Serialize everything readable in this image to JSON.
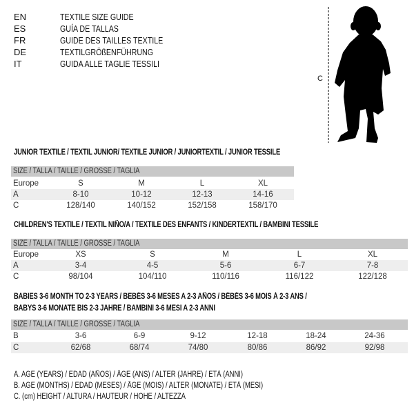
{
  "languages": [
    {
      "code": "EN",
      "text": "TEXTILE SIZE GUIDE"
    },
    {
      "code": "ES",
      "text": "GUÍA DE TALLAS"
    },
    {
      "code": "FR",
      "text": "GUIDE DES TAILLES TEXTILE"
    },
    {
      "code": "DE",
      "text": "TEXTILGRÖßENFÜHRUNG"
    },
    {
      "code": "IT",
      "text": "GUIDA ALLE TAGLIE TESSILI"
    }
  ],
  "figure": {
    "label": "C",
    "icon": "child-silhouette"
  },
  "size_header": "SIZE / TALLA / TAILLE / GRÖSSE / TAGLIA",
  "junior": {
    "title": "JUNIOR TEXTILE / TEXTIL JUNIOR/ TEXTILE JUNIOR / JUNIORTEXTIL / JUNIOR TESSILE",
    "rows": [
      {
        "label": "Europe",
        "values": [
          "S",
          "M",
          "L",
          "XL"
        ]
      },
      {
        "label": "A",
        "values": [
          "8-10",
          "10-12",
          "12-13",
          "14-16"
        ]
      },
      {
        "label": "C",
        "values": [
          "128/140",
          "140/152",
          "152/158",
          "158/170"
        ]
      }
    ]
  },
  "children": {
    "title": "CHILDREN'S TEXTILE / TEXTIL NIÑO/A / TEXTILE DES ENFANTS / KINDERTEXTIL / BAMBINI TESSILE",
    "rows": [
      {
        "label": "Europe",
        "values": [
          "XS",
          "S",
          "M",
          "L",
          "XL"
        ]
      },
      {
        "label": "A",
        "values": [
          "3-4",
          "4-5",
          "5-6",
          "6-7",
          "7-8"
        ]
      },
      {
        "label": "C",
        "values": [
          "98/104",
          "104/110",
          "110/116",
          "116/122",
          "122/128"
        ]
      }
    ]
  },
  "babies": {
    "title_line1": "BABIES 3-6 MONTH TO 2-3 YEARS / BEBÉS 3-6 MESES A 2-3 AÑOS / BÉBÉS 3-6 MOIS À 2-3 ANS /",
    "title_line2": "BABYS 3-6 MONATE BIS 2-3 JAHRE / BAMBINI 3-6 MESI A 2-3 ANNI",
    "rows": [
      {
        "label": "B",
        "values": [
          "3-6",
          "6-9",
          "9-12",
          "12-18",
          "18-24",
          "24-36"
        ]
      },
      {
        "label": "C",
        "values": [
          "62/68",
          "68/74",
          "74/80",
          "80/86",
          "86/92",
          "92/98"
        ]
      }
    ]
  },
  "legend": [
    "A. AGE (YEARS) / EDAD (AÑOS) / ÂGE (ANS) / ALTER (JAHRE) / ETÀ (ANNI)",
    "B. AGE (MONTHS) / EDAD (MESES) / ÂGE (MOIS) / ALTER (MONATE) / ETÀ (MESI)",
    "C. (cm) HEIGHT / ALTURA / HAUTEUR / HÖHE / ALTEZZA"
  ]
}
